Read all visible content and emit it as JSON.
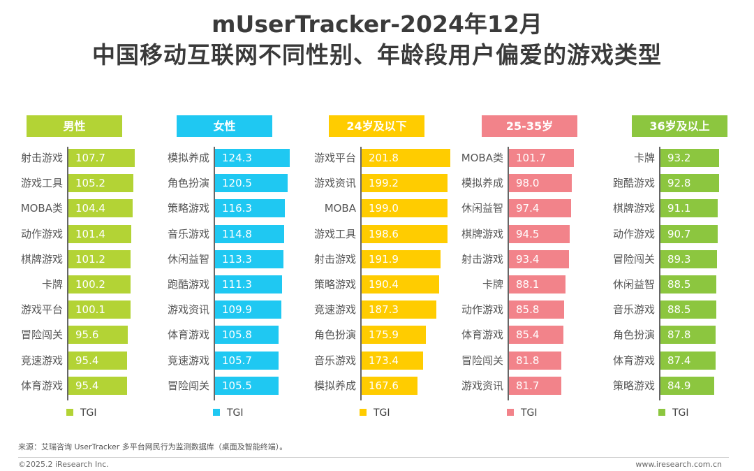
{
  "header": {
    "title_line1": "mUserTracker-2024年12月",
    "title_line2": "中国移动互联网不同性别、年龄段用户偏爱的游戏类型"
  },
  "chart_data": [
    {
      "type": "bar",
      "title": "男性",
      "color": "#b3d335",
      "legend": "TGI",
      "xlim": [
        0,
        147
      ],
      "categories": [
        "射击游戏",
        "游戏工具",
        "MOBA类",
        "动作游戏",
        "棋牌游戏",
        "卡牌",
        "游戏平台",
        "冒险闯关",
        "竞速游戏",
        "体育游戏"
      ],
      "values": [
        107.7,
        105.2,
        104.4,
        101.4,
        101.2,
        100.2,
        100.1,
        95.6,
        95.4,
        95.4
      ]
    },
    {
      "type": "bar",
      "title": "女性",
      "color": "#1fc8f2",
      "legend": "TGI",
      "xlim": [
        0,
        151
      ],
      "categories": [
        "模拟养成",
        "角色扮演",
        "策略游戏",
        "音乐游戏",
        "休闲益智",
        "跑酷游戏",
        "游戏资讯",
        "体育游戏",
        "竞速游戏",
        "冒险闯关"
      ],
      "values": [
        124.3,
        120.5,
        116.3,
        114.8,
        113.3,
        111.3,
        109.9,
        105.8,
        105.7,
        105.5
      ]
    },
    {
      "type": "bar",
      "title": "24岁及以下",
      "color": "#ffcc00",
      "legend": "TGI",
      "xlim": [
        109,
        204
      ],
      "categories": [
        "游戏平台",
        "游戏资讯",
        "MOBA",
        "游戏工具",
        "射击游戏",
        "策略游戏",
        "竞速游戏",
        "角色扮演",
        "音乐游戏",
        "模拟养成"
      ],
      "values": [
        201.8,
        199.2,
        199.0,
        198.6,
        191.9,
        190.4,
        187.3,
        175.9,
        173.4,
        167.6
      ]
    },
    {
      "type": "bar",
      "title": "25-35岁",
      "color": "#f2838a",
      "legend": "TGI",
      "xlim": [
        0,
        142
      ],
      "categories": [
        "MOBA类",
        "模拟养成",
        "休闲益智",
        "棋牌游戏",
        "射击游戏",
        "卡牌",
        "动作游戏",
        "体育游戏",
        "冒险闯关",
        "游戏资讯"
      ],
      "values": [
        101.7,
        98.0,
        97.4,
        94.5,
        93.4,
        88.1,
        85.8,
        85.4,
        81.8,
        81.7
      ]
    },
    {
      "type": "bar",
      "title": "36岁及以上",
      "color": "#8cc63f",
      "legend": "TGI",
      "xlim": [
        0,
        144
      ],
      "categories": [
        "卡牌",
        "跑酷游戏",
        "棋牌游戏",
        "动作游戏",
        "冒险闯关",
        "休闲益智",
        "音乐游戏",
        "角色扮演",
        "体育游戏",
        "策略游戏"
      ],
      "values": [
        93.2,
        92.8,
        91.1,
        90.7,
        89.3,
        88.5,
        88.5,
        87.8,
        87.4,
        84.9
      ]
    }
  ],
  "footer": {
    "source": "来源：艾瑞咨询 UserTracker 多平台网民行为监测数据库（桌面及智能终端）。",
    "copyright": "©2025.2 iResearch Inc.",
    "url": "www.iresearch.com.cn"
  }
}
